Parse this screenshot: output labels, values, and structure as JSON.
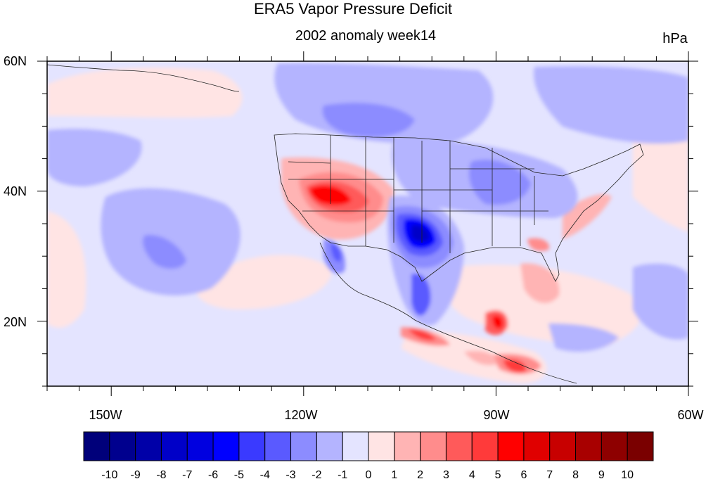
{
  "title": "ERA5 Vapor Pressure Deficit",
  "subtitle": "2002 anomaly week14",
  "units": "hPa",
  "map": {
    "lon_range": [
      -160,
      -60
    ],
    "lat_range": [
      10,
      60
    ],
    "lon_ticks": [
      {
        "value": -150,
        "label": "150W"
      },
      {
        "value": -120,
        "label": "120W"
      },
      {
        "value": -90,
        "label": "90W"
      },
      {
        "value": -60,
        "label": "60W"
      }
    ],
    "lat_ticks": [
      {
        "value": 60,
        "label": "60N"
      },
      {
        "value": 40,
        "label": "40N"
      },
      {
        "value": 20,
        "label": "20N"
      }
    ]
  },
  "colorbar": {
    "labels": [
      "-10",
      "-9",
      "-8",
      "-7",
      "-6",
      "-5",
      "-4",
      "-3",
      "-2",
      "-1",
      "0",
      "1",
      "2",
      "3",
      "4",
      "5",
      "6",
      "7",
      "8",
      "9",
      "10"
    ],
    "colors": [
      "#00007a",
      "#00008e",
      "#0000a8",
      "#0000c8",
      "#0000e0",
      "#0000ff",
      "#3a3aff",
      "#5a5aff",
      "#8c8cff",
      "#b4b4ff",
      "#e4e4ff",
      "#ffe4e4",
      "#ffb4b4",
      "#ff8c8c",
      "#ff5a5a",
      "#ff3a3a",
      "#ff0000",
      "#e00000",
      "#c80000",
      "#a80000",
      "#8e0000",
      "#7a0000"
    ]
  }
}
